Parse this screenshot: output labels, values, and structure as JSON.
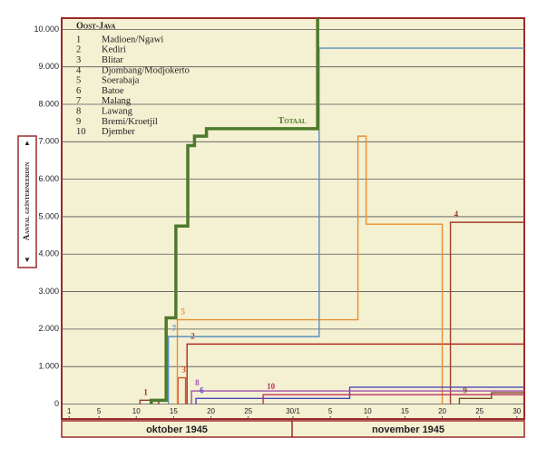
{
  "chart_data": {
    "type": "step",
    "legend_title": "Oost-Java",
    "ylabel": "Aantal geïnterneerden",
    "months": [
      "oktober 1945",
      "november 1945"
    ],
    "xlim": [
      0,
      62
    ],
    "xticks": [
      1,
      5,
      10,
      15,
      20,
      25,
      {
        "value": 31,
        "label": "30/1"
      },
      {
        "value": 36,
        "label": "5"
      },
      {
        "value": 41,
        "label": "10"
      },
      {
        "value": 46,
        "label": "15"
      },
      {
        "value": 51,
        "label": "20"
      },
      {
        "value": 56,
        "label": "25"
      },
      {
        "value": 61,
        "label": "30"
      }
    ],
    "ylim": [
      -400,
      10300
    ],
    "yticks": [
      0,
      {
        "value": 1000,
        "label": "1.000"
      },
      {
        "value": 2000,
        "label": "2.000"
      },
      {
        "value": 3000,
        "label": "3.000"
      },
      {
        "value": 4000,
        "label": "4.000"
      },
      {
        "value": 5000,
        "label": "5.000"
      },
      {
        "value": 6000,
        "label": "6.000"
      },
      {
        "value": 7000,
        "label": "7.000"
      },
      {
        "value": 8000,
        "label": "8.000"
      },
      {
        "value": 9000,
        "label": "9.000"
      },
      {
        "value": 10000,
        "label": "10.000"
      }
    ],
    "grid": true,
    "series": [
      {
        "id": "1",
        "name": "Madioen/Ngawi",
        "color": "#8a3a2a",
        "x": [
          10.5,
          13
        ],
        "values": [
          100,
          0
        ]
      },
      {
        "id": "2",
        "name": "Kediri",
        "color": "#b02a20",
        "x": [
          16.8,
          62
        ],
        "values": [
          1600,
          1600
        ]
      },
      {
        "id": "3",
        "name": "Blitar",
        "color": "#d8502a",
        "x": [
          15.6,
          16.6
        ],
        "values": [
          700,
          0
        ]
      },
      {
        "id": "4",
        "name": "Djombang/Modjokerto",
        "color": "#a0402a",
        "x": [
          52.1,
          62
        ],
        "values": [
          4850,
          4850
        ]
      },
      {
        "id": "5",
        "name": "Soerabaja",
        "color": "#e89030",
        "x": [
          15.5,
          39.7,
          40.8,
          51
        ],
        "values": [
          2250,
          7150,
          4800,
          0
        ]
      },
      {
        "id": "6",
        "name": "Batoe",
        "color": "#4a48b8",
        "x": [
          18,
          38.6,
          62
        ],
        "values": [
          150,
          450,
          450
        ]
      },
      {
        "id": "7",
        "name": "Malang",
        "color": "#5a90c0",
        "x": [
          14.3,
          34.5,
          62
        ],
        "values": [
          1800,
          9500,
          9500
        ]
      },
      {
        "id": "8",
        "name": "Lawang",
        "color": "#a050b0",
        "x": [
          17.4,
          62
        ],
        "values": [
          350,
          350
        ]
      },
      {
        "id": "9",
        "name": "Bremi/Kroetjil",
        "color": "#7a4a2a",
        "x": [
          53.3,
          57.6,
          62
        ],
        "values": [
          150,
          300,
          300
        ]
      },
      {
        "id": "10",
        "name": "Djember",
        "color": "#c03060",
        "x": [
          27,
          62
        ],
        "values": [
          250,
          250
        ]
      },
      {
        "id": "Totaal",
        "color": "#4e7a2c",
        "x": [
          12,
          14,
          15.3,
          16.9,
          17.8,
          19.4,
          34.3
        ],
        "values": [
          100,
          2300,
          4750,
          6900,
          7150,
          7350,
          10300
        ]
      }
    ]
  }
}
